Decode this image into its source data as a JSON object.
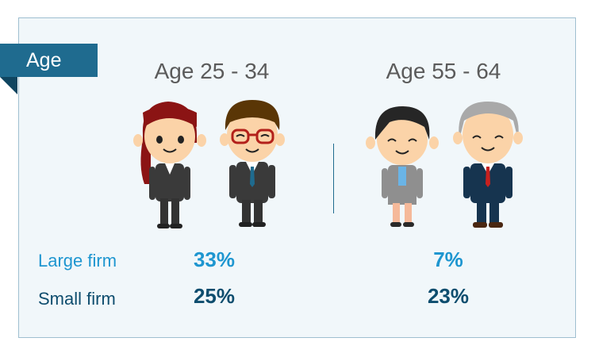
{
  "section_label": "Age",
  "groups": [
    {
      "title": "Age 25 - 34",
      "large_firm": "33%",
      "small_firm": "25%"
    },
    {
      "title": "Age 55 - 64",
      "large_firm": "7%",
      "small_firm": "23%"
    }
  ],
  "rows": {
    "large_label": "Large firm",
    "small_label": "Small firm"
  },
  "colors": {
    "ribbon": "#1f6b8f",
    "large": "#1e96d0",
    "small": "#0e4d6e"
  }
}
